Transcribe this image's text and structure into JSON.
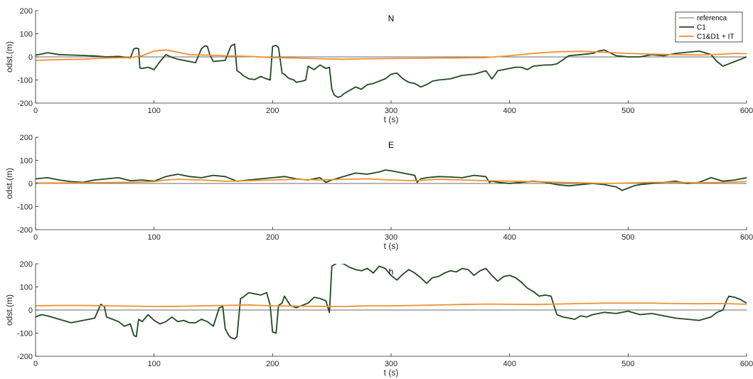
{
  "colors": {
    "referenca": "#3a3a3a",
    "C1": "#1f4a1f",
    "C1D1IT": "#f0912f"
  },
  "legend": {
    "placement": "top-right",
    "entries": [
      "referenca",
      "C1",
      "C1&D1 + IT"
    ]
  },
  "chart_data": [
    {
      "type": "line",
      "title": "N",
      "xlabel": "t (s)",
      "ylabel": "odst.(m)",
      "xlim": [
        0,
        600
      ],
      "ylim": [
        -200,
        200
      ],
      "xticks": [
        0,
        100,
        200,
        300,
        400,
        500,
        600
      ],
      "yticks": [
        -200,
        -100,
        0,
        100,
        200
      ],
      "grid": false,
      "series": [
        {
          "name": "referenca",
          "x": [
            0,
            600
          ],
          "y": [
            0,
            0
          ]
        },
        {
          "name": "C1",
          "x": [
            0,
            5,
            10,
            20,
            30,
            40,
            50,
            60,
            70,
            80,
            83,
            85,
            87,
            88,
            90,
            95,
            100,
            105,
            110,
            115,
            120,
            125,
            130,
            135,
            140,
            143,
            145,
            147,
            150,
            160,
            165,
            168,
            170,
            173,
            175,
            180,
            185,
            190,
            195,
            198,
            200,
            203,
            205,
            208,
            210,
            213,
            215,
            218,
            220,
            225,
            228,
            230,
            235,
            240,
            245,
            248,
            250,
            252,
            255,
            258,
            260,
            265,
            270,
            275,
            280,
            285,
            290,
            295,
            300,
            305,
            310,
            315,
            320,
            325,
            330,
            335,
            340,
            350,
            360,
            370,
            380,
            383,
            385,
            388,
            390,
            395,
            400,
            405,
            410,
            415,
            420,
            430,
            435,
            440,
            450,
            460,
            470,
            475,
            480,
            490,
            500,
            510,
            520,
            530,
            540,
            550,
            560,
            570,
            575,
            580,
            585,
            590,
            595,
            600
          ],
          "y": [
            8,
            12,
            18,
            10,
            8,
            6,
            4,
            0,
            2,
            -5,
            35,
            38,
            35,
            -48,
            -50,
            -45,
            -55,
            -20,
            10,
            -2,
            -10,
            -15,
            -20,
            -25,
            35,
            48,
            45,
            10,
            -20,
            -15,
            48,
            55,
            -60,
            -70,
            -80,
            -95,
            -98,
            -85,
            -95,
            -100,
            45,
            50,
            40,
            -70,
            -75,
            -90,
            -95,
            -100,
            -110,
            -105,
            -100,
            -40,
            -55,
            -35,
            -50,
            -45,
            -140,
            -165,
            -175,
            -170,
            -160,
            -145,
            -130,
            -140,
            -120,
            -115,
            -105,
            -95,
            -75,
            -70,
            -95,
            -110,
            -115,
            -130,
            -120,
            -105,
            -100,
            -95,
            -80,
            -75,
            -60,
            -80,
            -95,
            -75,
            -60,
            -55,
            -50,
            -45,
            -45,
            -55,
            -40,
            -35,
            -35,
            -30,
            5,
            10,
            15,
            25,
            30,
            5,
            0,
            0,
            10,
            5,
            15,
            20,
            25,
            10,
            -20,
            -40,
            -30,
            -20,
            -10,
            0
          ]
        },
        {
          "name": "C1&D1 + IT",
          "x": [
            0,
            20,
            40,
            60,
            80,
            90,
            100,
            110,
            120,
            130,
            140,
            160,
            180,
            200,
            220,
            240,
            260,
            280,
            300,
            320,
            340,
            360,
            380,
            400,
            420,
            440,
            460,
            480,
            500,
            520,
            540,
            560,
            580,
            590,
            600
          ],
          "y": [
            -15,
            -12,
            -10,
            -5,
            -3,
            5,
            25,
            30,
            20,
            10,
            8,
            5,
            2,
            -3,
            -5,
            -8,
            -10,
            -8,
            -7,
            -6,
            -5,
            -4,
            -3,
            5,
            15,
            22,
            24,
            20,
            15,
            12,
            10,
            8,
            12,
            15,
            14
          ]
        }
      ]
    },
    {
      "type": "line",
      "title": "E",
      "xlabel": "t (s)",
      "ylabel": "odst.(m)",
      "xlim": [
        0,
        600
      ],
      "ylim": [
        -200,
        200
      ],
      "xticks": [
        0,
        100,
        200,
        300,
        400,
        500,
        600
      ],
      "yticks": [
        -200,
        -100,
        0,
        100,
        200
      ],
      "grid": false,
      "series": [
        {
          "name": "referenca",
          "x": [
            0,
            600
          ],
          "y": [
            0,
            0
          ]
        },
        {
          "name": "C1",
          "x": [
            0,
            10,
            20,
            30,
            40,
            50,
            60,
            70,
            80,
            90,
            100,
            110,
            120,
            130,
            140,
            150,
            160,
            170,
            180,
            190,
            200,
            210,
            220,
            230,
            240,
            245,
            250,
            260,
            270,
            280,
            290,
            295,
            300,
            310,
            320,
            322,
            325,
            330,
            340,
            350,
            360,
            370,
            380,
            383,
            385,
            390,
            400,
            410,
            420,
            430,
            440,
            450,
            460,
            470,
            480,
            490,
            495,
            500,
            505,
            510,
            520,
            530,
            540,
            550,
            560,
            570,
            580,
            590,
            600
          ],
          "y": [
            20,
            25,
            15,
            8,
            5,
            15,
            20,
            25,
            12,
            15,
            10,
            30,
            40,
            30,
            25,
            35,
            30,
            10,
            15,
            20,
            25,
            30,
            20,
            15,
            25,
            5,
            15,
            30,
            45,
            40,
            50,
            58,
            55,
            45,
            35,
            5,
            20,
            25,
            30,
            28,
            25,
            35,
            30,
            5,
            10,
            5,
            0,
            5,
            10,
            5,
            -5,
            -10,
            -5,
            0,
            -5,
            -15,
            -30,
            -20,
            -10,
            -5,
            0,
            5,
            10,
            0,
            5,
            25,
            10,
            15,
            25
          ]
        },
        {
          "name": "C1&D1 + IT",
          "x": [
            0,
            40,
            80,
            100,
            110,
            120,
            140,
            160,
            180,
            200,
            220,
            240,
            260,
            280,
            300,
            320,
            340,
            360,
            380,
            400,
            420,
            440,
            460,
            480,
            500,
            520,
            540,
            560,
            580,
            600
          ],
          "y": [
            2,
            3,
            5,
            8,
            15,
            18,
            15,
            10,
            12,
            15,
            18,
            15,
            18,
            20,
            15,
            12,
            18,
            15,
            12,
            10,
            8,
            5,
            3,
            0,
            2,
            5,
            5,
            3,
            5,
            8
          ]
        }
      ]
    },
    {
      "type": "line",
      "title": "h",
      "xlabel": "t (s)",
      "ylabel": "odst.(m)",
      "xlim": [
        0,
        600
      ],
      "ylim": [
        -200,
        200
      ],
      "xticks": [
        0,
        100,
        200,
        300,
        400,
        500,
        600
      ],
      "yticks": [
        -200,
        -100,
        0,
        100,
        200
      ],
      "grid": false,
      "series": [
        {
          "name": "referenca",
          "x": [
            0,
            600
          ],
          "y": [
            0,
            0
          ]
        },
        {
          "name": "C1",
          "x": [
            0,
            5,
            10,
            20,
            30,
            40,
            50,
            55,
            58,
            60,
            65,
            70,
            75,
            80,
            83,
            85,
            87,
            90,
            95,
            100,
            105,
            110,
            115,
            120,
            125,
            130,
            135,
            140,
            145,
            150,
            155,
            158,
            160,
            163,
            165,
            168,
            170,
            173,
            175,
            180,
            185,
            190,
            195,
            198,
            200,
            203,
            205,
            208,
            210,
            215,
            220,
            225,
            230,
            235,
            240,
            245,
            248,
            250,
            255,
            260,
            265,
            270,
            275,
            280,
            285,
            290,
            295,
            300,
            305,
            310,
            315,
            320,
            325,
            330,
            335,
            340,
            345,
            350,
            355,
            360,
            365,
            370,
            375,
            380,
            385,
            390,
            395,
            400,
            405,
            410,
            415,
            420,
            425,
            430,
            435,
            438,
            440,
            445,
            450,
            455,
            460,
            465,
            470,
            480,
            490,
            500,
            510,
            520,
            530,
            540,
            550,
            560,
            570,
            575,
            580,
            583,
            585,
            590,
            595,
            600
          ],
          "y": [
            -30,
            -20,
            -25,
            -40,
            -55,
            -45,
            -35,
            25,
            15,
            -30,
            -40,
            -50,
            -70,
            -60,
            -110,
            -115,
            -40,
            -50,
            -20,
            -45,
            -60,
            -50,
            -30,
            -50,
            -45,
            -55,
            -55,
            -40,
            -50,
            -70,
            10,
            15,
            -80,
            -110,
            -120,
            -125,
            -115,
            50,
            55,
            75,
            70,
            65,
            75,
            20,
            -95,
            -100,
            20,
            30,
            60,
            20,
            10,
            20,
            30,
            55,
            50,
            40,
            -10,
            190,
            205,
            200,
            185,
            175,
            170,
            180,
            160,
            190,
            180,
            150,
            130,
            155,
            175,
            160,
            140,
            115,
            140,
            145,
            160,
            170,
            165,
            180,
            175,
            150,
            170,
            180,
            150,
            125,
            145,
            150,
            140,
            120,
            95,
            80,
            60,
            65,
            60,
            10,
            -20,
            -30,
            -35,
            -40,
            -25,
            -30,
            -20,
            -10,
            -15,
            -5,
            -20,
            -15,
            -25,
            -35,
            -40,
            -45,
            -30,
            -10,
            0,
            40,
            60,
            55,
            45,
            30
          ]
        },
        {
          "name": "C1&D1 + IT",
          "x": [
            0,
            20,
            40,
            60,
            80,
            100,
            120,
            140,
            160,
            180,
            200,
            220,
            240,
            260,
            280,
            300,
            320,
            340,
            360,
            380,
            400,
            420,
            440,
            460,
            480,
            500,
            520,
            540,
            560,
            580,
            600
          ],
          "y": [
            18,
            20,
            20,
            18,
            17,
            15,
            16,
            18,
            20,
            22,
            18,
            17,
            16,
            15,
            18,
            18,
            20,
            22,
            24,
            26,
            25,
            24,
            26,
            28,
            30,
            30,
            30,
            28,
            27,
            28,
            25
          ]
        }
      ]
    }
  ]
}
